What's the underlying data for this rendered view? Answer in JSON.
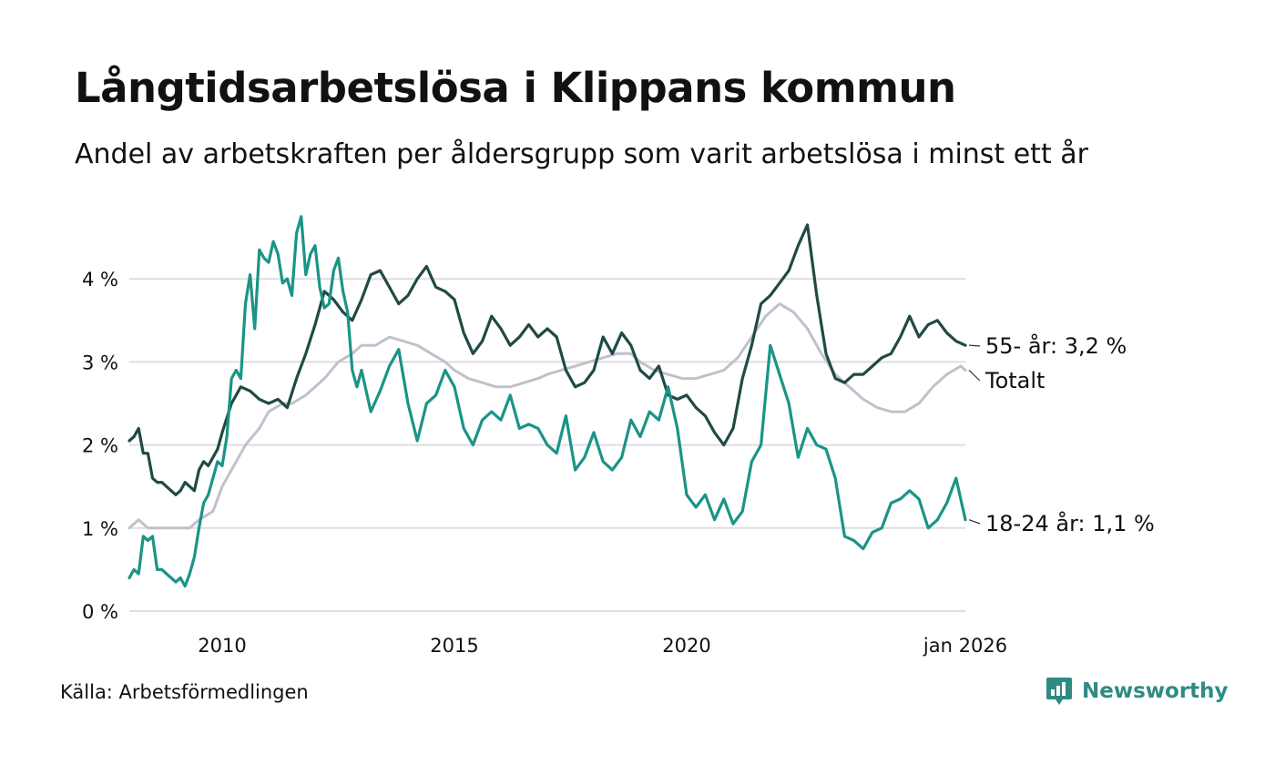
{
  "title": "Långtidsarbetslösa i Klippans kommun",
  "subtitle": "Andel av arbetskraften per åldersgrupp som varit arbetslösa i minst ett år",
  "source": "Källa: Arbetsförmedlingen",
  "brand": "Newsworthy",
  "colors": {
    "older": "#204a45",
    "total": "#c2c0cc",
    "young": "#1a9486",
    "grid": "#dedee3",
    "brand": "#2e8b83"
  },
  "chart_data": {
    "type": "line",
    "title": "Långtidsarbetslösa i Klippans kommun",
    "xlabel": "",
    "ylabel": "",
    "xlim": [
      2008.0,
      2026.0
    ],
    "ylim": [
      0,
      4.8
    ],
    "x_ticks": [
      {
        "value": 2010,
        "label": "2010"
      },
      {
        "value": 2015,
        "label": "2015"
      },
      {
        "value": 2020,
        "label": "2020"
      },
      {
        "value": 2026,
        "label": "jan 2026"
      }
    ],
    "y_ticks": [
      {
        "value": 0,
        "label": "0 %"
      },
      {
        "value": 1,
        "label": "1 %"
      },
      {
        "value": 2,
        "label": "2 %"
      },
      {
        "value": 3,
        "label": "3 %"
      },
      {
        "value": 4,
        "label": "4 %"
      }
    ],
    "series": [
      {
        "name": "Totalt",
        "key": "total",
        "end_label": "Totalt",
        "points": [
          [
            2008.0,
            1.0
          ],
          [
            2008.2,
            1.1
          ],
          [
            2008.4,
            1.0
          ],
          [
            2008.7,
            1.0
          ],
          [
            2009.0,
            1.0
          ],
          [
            2009.3,
            1.0
          ],
          [
            2009.5,
            1.1
          ],
          [
            2009.8,
            1.2
          ],
          [
            2010.0,
            1.5
          ],
          [
            2010.2,
            1.7
          ],
          [
            2010.5,
            2.0
          ],
          [
            2010.8,
            2.2
          ],
          [
            2011.0,
            2.4
          ],
          [
            2011.3,
            2.5
          ],
          [
            2011.5,
            2.5
          ],
          [
            2011.8,
            2.6
          ],
          [
            2012.0,
            2.7
          ],
          [
            2012.2,
            2.8
          ],
          [
            2012.5,
            3.0
          ],
          [
            2012.8,
            3.1
          ],
          [
            2013.0,
            3.2
          ],
          [
            2013.3,
            3.2
          ],
          [
            2013.6,
            3.3
          ],
          [
            2013.9,
            3.25
          ],
          [
            2014.2,
            3.2
          ],
          [
            2014.5,
            3.1
          ],
          [
            2014.8,
            3.0
          ],
          [
            2015.0,
            2.9
          ],
          [
            2015.3,
            2.8
          ],
          [
            2015.6,
            2.75
          ],
          [
            2015.9,
            2.7
          ],
          [
            2016.2,
            2.7
          ],
          [
            2016.5,
            2.75
          ],
          [
            2016.8,
            2.8
          ],
          [
            2017.0,
            2.85
          ],
          [
            2017.3,
            2.9
          ],
          [
            2017.6,
            2.95
          ],
          [
            2017.9,
            3.0
          ],
          [
            2018.2,
            3.05
          ],
          [
            2018.5,
            3.1
          ],
          [
            2018.8,
            3.1
          ],
          [
            2019.0,
            3.0
          ],
          [
            2019.3,
            2.9
          ],
          [
            2019.6,
            2.85
          ],
          [
            2019.9,
            2.8
          ],
          [
            2020.2,
            2.8
          ],
          [
            2020.5,
            2.85
          ],
          [
            2020.8,
            2.9
          ],
          [
            2021.1,
            3.05
          ],
          [
            2021.4,
            3.3
          ],
          [
            2021.7,
            3.55
          ],
          [
            2022.0,
            3.7
          ],
          [
            2022.3,
            3.6
          ],
          [
            2022.6,
            3.4
          ],
          [
            2022.9,
            3.1
          ],
          [
            2023.2,
            2.85
          ],
          [
            2023.5,
            2.7
          ],
          [
            2023.8,
            2.55
          ],
          [
            2024.1,
            2.45
          ],
          [
            2024.4,
            2.4
          ],
          [
            2024.7,
            2.4
          ],
          [
            2025.0,
            2.5
          ],
          [
            2025.3,
            2.7
          ],
          [
            2025.6,
            2.85
          ],
          [
            2025.9,
            2.95
          ],
          [
            2026.0,
            2.9
          ]
        ]
      },
      {
        "name": "55- år",
        "key": "older",
        "end_label": "55- år: 3,2 %",
        "points": [
          [
            2008.0,
            2.05
          ],
          [
            2008.1,
            2.1
          ],
          [
            2008.2,
            2.2
          ],
          [
            2008.3,
            1.9
          ],
          [
            2008.4,
            1.9
          ],
          [
            2008.5,
            1.6
          ],
          [
            2008.6,
            1.55
          ],
          [
            2008.7,
            1.55
          ],
          [
            2008.8,
            1.5
          ],
          [
            2008.9,
            1.45
          ],
          [
            2009.0,
            1.4
          ],
          [
            2009.1,
            1.45
          ],
          [
            2009.2,
            1.55
          ],
          [
            2009.3,
            1.5
          ],
          [
            2009.4,
            1.45
          ],
          [
            2009.5,
            1.7
          ],
          [
            2009.6,
            1.8
          ],
          [
            2009.7,
            1.75
          ],
          [
            2009.8,
            1.85
          ],
          [
            2009.9,
            1.95
          ],
          [
            2010.0,
            2.15
          ],
          [
            2010.2,
            2.5
          ],
          [
            2010.4,
            2.7
          ],
          [
            2010.6,
            2.65
          ],
          [
            2010.8,
            2.55
          ],
          [
            2011.0,
            2.5
          ],
          [
            2011.2,
            2.55
          ],
          [
            2011.4,
            2.45
          ],
          [
            2011.6,
            2.8
          ],
          [
            2011.8,
            3.1
          ],
          [
            2012.0,
            3.45
          ],
          [
            2012.2,
            3.85
          ],
          [
            2012.4,
            3.75
          ],
          [
            2012.6,
            3.6
          ],
          [
            2012.8,
            3.5
          ],
          [
            2013.0,
            3.75
          ],
          [
            2013.2,
            4.05
          ],
          [
            2013.4,
            4.1
          ],
          [
            2013.6,
            3.9
          ],
          [
            2013.8,
            3.7
          ],
          [
            2014.0,
            3.8
          ],
          [
            2014.2,
            4.0
          ],
          [
            2014.4,
            4.15
          ],
          [
            2014.6,
            3.9
          ],
          [
            2014.8,
            3.85
          ],
          [
            2015.0,
            3.75
          ],
          [
            2015.2,
            3.35
          ],
          [
            2015.4,
            3.1
          ],
          [
            2015.6,
            3.25
          ],
          [
            2015.8,
            3.55
          ],
          [
            2016.0,
            3.4
          ],
          [
            2016.2,
            3.2
          ],
          [
            2016.4,
            3.3
          ],
          [
            2016.6,
            3.45
          ],
          [
            2016.8,
            3.3
          ],
          [
            2017.0,
            3.4
          ],
          [
            2017.2,
            3.3
          ],
          [
            2017.4,
            2.9
          ],
          [
            2017.6,
            2.7
          ],
          [
            2017.8,
            2.75
          ],
          [
            2018.0,
            2.9
          ],
          [
            2018.2,
            3.3
          ],
          [
            2018.4,
            3.1
          ],
          [
            2018.6,
            3.35
          ],
          [
            2018.8,
            3.2
          ],
          [
            2019.0,
            2.9
          ],
          [
            2019.2,
            2.8
          ],
          [
            2019.4,
            2.95
          ],
          [
            2019.6,
            2.6
          ],
          [
            2019.8,
            2.55
          ],
          [
            2020.0,
            2.6
          ],
          [
            2020.2,
            2.45
          ],
          [
            2020.4,
            2.35
          ],
          [
            2020.6,
            2.15
          ],
          [
            2020.8,
            2.0
          ],
          [
            2021.0,
            2.2
          ],
          [
            2021.2,
            2.8
          ],
          [
            2021.4,
            3.2
          ],
          [
            2021.6,
            3.7
          ],
          [
            2021.8,
            3.8
          ],
          [
            2022.0,
            3.95
          ],
          [
            2022.2,
            4.1
          ],
          [
            2022.4,
            4.4
          ],
          [
            2022.6,
            4.65
          ],
          [
            2022.8,
            3.8
          ],
          [
            2023.0,
            3.1
          ],
          [
            2023.2,
            2.8
          ],
          [
            2023.4,
            2.75
          ],
          [
            2023.6,
            2.85
          ],
          [
            2023.8,
            2.85
          ],
          [
            2024.0,
            2.95
          ],
          [
            2024.2,
            3.05
          ],
          [
            2024.4,
            3.1
          ],
          [
            2024.6,
            3.3
          ],
          [
            2024.8,
            3.55
          ],
          [
            2025.0,
            3.3
          ],
          [
            2025.2,
            3.45
          ],
          [
            2025.4,
            3.5
          ],
          [
            2025.6,
            3.35
          ],
          [
            2025.8,
            3.25
          ],
          [
            2026.0,
            3.2
          ]
        ]
      },
      {
        "name": "18-24 år",
        "key": "young",
        "end_label": "18-24 år: 1,1 %",
        "points": [
          [
            2008.0,
            0.4
          ],
          [
            2008.1,
            0.5
          ],
          [
            2008.2,
            0.45
          ],
          [
            2008.3,
            0.9
          ],
          [
            2008.4,
            0.85
          ],
          [
            2008.5,
            0.9
          ],
          [
            2008.6,
            0.5
          ],
          [
            2008.7,
            0.5
          ],
          [
            2008.8,
            0.45
          ],
          [
            2008.9,
            0.4
          ],
          [
            2009.0,
            0.35
          ],
          [
            2009.1,
            0.4
          ],
          [
            2009.2,
            0.3
          ],
          [
            2009.3,
            0.45
          ],
          [
            2009.4,
            0.65
          ],
          [
            2009.5,
            1.0
          ],
          [
            2009.6,
            1.3
          ],
          [
            2009.7,
            1.4
          ],
          [
            2009.8,
            1.6
          ],
          [
            2009.9,
            1.8
          ],
          [
            2010.0,
            1.75
          ],
          [
            2010.1,
            2.1
          ],
          [
            2010.2,
            2.8
          ],
          [
            2010.3,
            2.9
          ],
          [
            2010.4,
            2.8
          ],
          [
            2010.5,
            3.7
          ],
          [
            2010.6,
            4.05
          ],
          [
            2010.7,
            3.4
          ],
          [
            2010.8,
            4.35
          ],
          [
            2010.9,
            4.25
          ],
          [
            2011.0,
            4.2
          ],
          [
            2011.1,
            4.45
          ],
          [
            2011.2,
            4.3
          ],
          [
            2011.3,
            3.95
          ],
          [
            2011.4,
            4.0
          ],
          [
            2011.5,
            3.8
          ],
          [
            2011.6,
            4.55
          ],
          [
            2011.7,
            4.75
          ],
          [
            2011.8,
            4.05
          ],
          [
            2011.9,
            4.3
          ],
          [
            2012.0,
            4.4
          ],
          [
            2012.1,
            3.9
          ],
          [
            2012.2,
            3.65
          ],
          [
            2012.3,
            3.7
          ],
          [
            2012.4,
            4.1
          ],
          [
            2012.5,
            4.25
          ],
          [
            2012.6,
            3.85
          ],
          [
            2012.7,
            3.6
          ],
          [
            2012.8,
            2.9
          ],
          [
            2012.9,
            2.7
          ],
          [
            2013.0,
            2.9
          ],
          [
            2013.2,
            2.4
          ],
          [
            2013.4,
            2.65
          ],
          [
            2013.6,
            2.95
          ],
          [
            2013.8,
            3.15
          ],
          [
            2014.0,
            2.5
          ],
          [
            2014.2,
            2.05
          ],
          [
            2014.4,
            2.5
          ],
          [
            2014.6,
            2.6
          ],
          [
            2014.8,
            2.9
          ],
          [
            2015.0,
            2.7
          ],
          [
            2015.2,
            2.2
          ],
          [
            2015.4,
            2.0
          ],
          [
            2015.6,
            2.3
          ],
          [
            2015.8,
            2.4
          ],
          [
            2016.0,
            2.3
          ],
          [
            2016.2,
            2.6
          ],
          [
            2016.4,
            2.2
          ],
          [
            2016.6,
            2.25
          ],
          [
            2016.8,
            2.2
          ],
          [
            2017.0,
            2.0
          ],
          [
            2017.2,
            1.9
          ],
          [
            2017.4,
            2.35
          ],
          [
            2017.6,
            1.7
          ],
          [
            2017.8,
            1.85
          ],
          [
            2018.0,
            2.15
          ],
          [
            2018.2,
            1.8
          ],
          [
            2018.4,
            1.7
          ],
          [
            2018.6,
            1.85
          ],
          [
            2018.8,
            2.3
          ],
          [
            2019.0,
            2.1
          ],
          [
            2019.2,
            2.4
          ],
          [
            2019.4,
            2.3
          ],
          [
            2019.6,
            2.7
          ],
          [
            2019.8,
            2.2
          ],
          [
            2020.0,
            1.4
          ],
          [
            2020.2,
            1.25
          ],
          [
            2020.4,
            1.4
          ],
          [
            2020.6,
            1.1
          ],
          [
            2020.8,
            1.35
          ],
          [
            2021.0,
            1.05
          ],
          [
            2021.2,
            1.2
          ],
          [
            2021.4,
            1.8
          ],
          [
            2021.6,
            2.0
          ],
          [
            2021.8,
            3.2
          ],
          [
            2022.0,
            2.85
          ],
          [
            2022.2,
            2.5
          ],
          [
            2022.4,
            1.85
          ],
          [
            2022.6,
            2.2
          ],
          [
            2022.8,
            2.0
          ],
          [
            2023.0,
            1.95
          ],
          [
            2023.2,
            1.6
          ],
          [
            2023.4,
            0.9
          ],
          [
            2023.6,
            0.85
          ],
          [
            2023.8,
            0.75
          ],
          [
            2024.0,
            0.95
          ],
          [
            2024.2,
            1.0
          ],
          [
            2024.4,
            1.3
          ],
          [
            2024.6,
            1.35
          ],
          [
            2024.8,
            1.45
          ],
          [
            2025.0,
            1.35
          ],
          [
            2025.2,
            1.0
          ],
          [
            2025.4,
            1.1
          ],
          [
            2025.6,
            1.3
          ],
          [
            2025.8,
            1.6
          ],
          [
            2026.0,
            1.1
          ]
        ]
      }
    ]
  }
}
